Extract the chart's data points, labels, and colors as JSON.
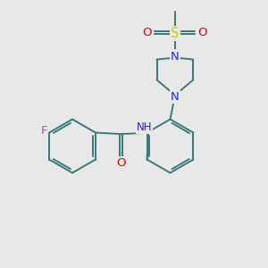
{
  "background_color": "#e8e8e8",
  "bond_color": "#3a7a7a",
  "atom_colors": {
    "F": "#cc44cc",
    "O": "#dd0000",
    "N": "#2222dd",
    "S": "#cccc00",
    "C": "#3a7a7a",
    "H": "#888888"
  },
  "bond_width": 1.4,
  "figsize": [
    3.0,
    3.0
  ],
  "dpi": 100
}
